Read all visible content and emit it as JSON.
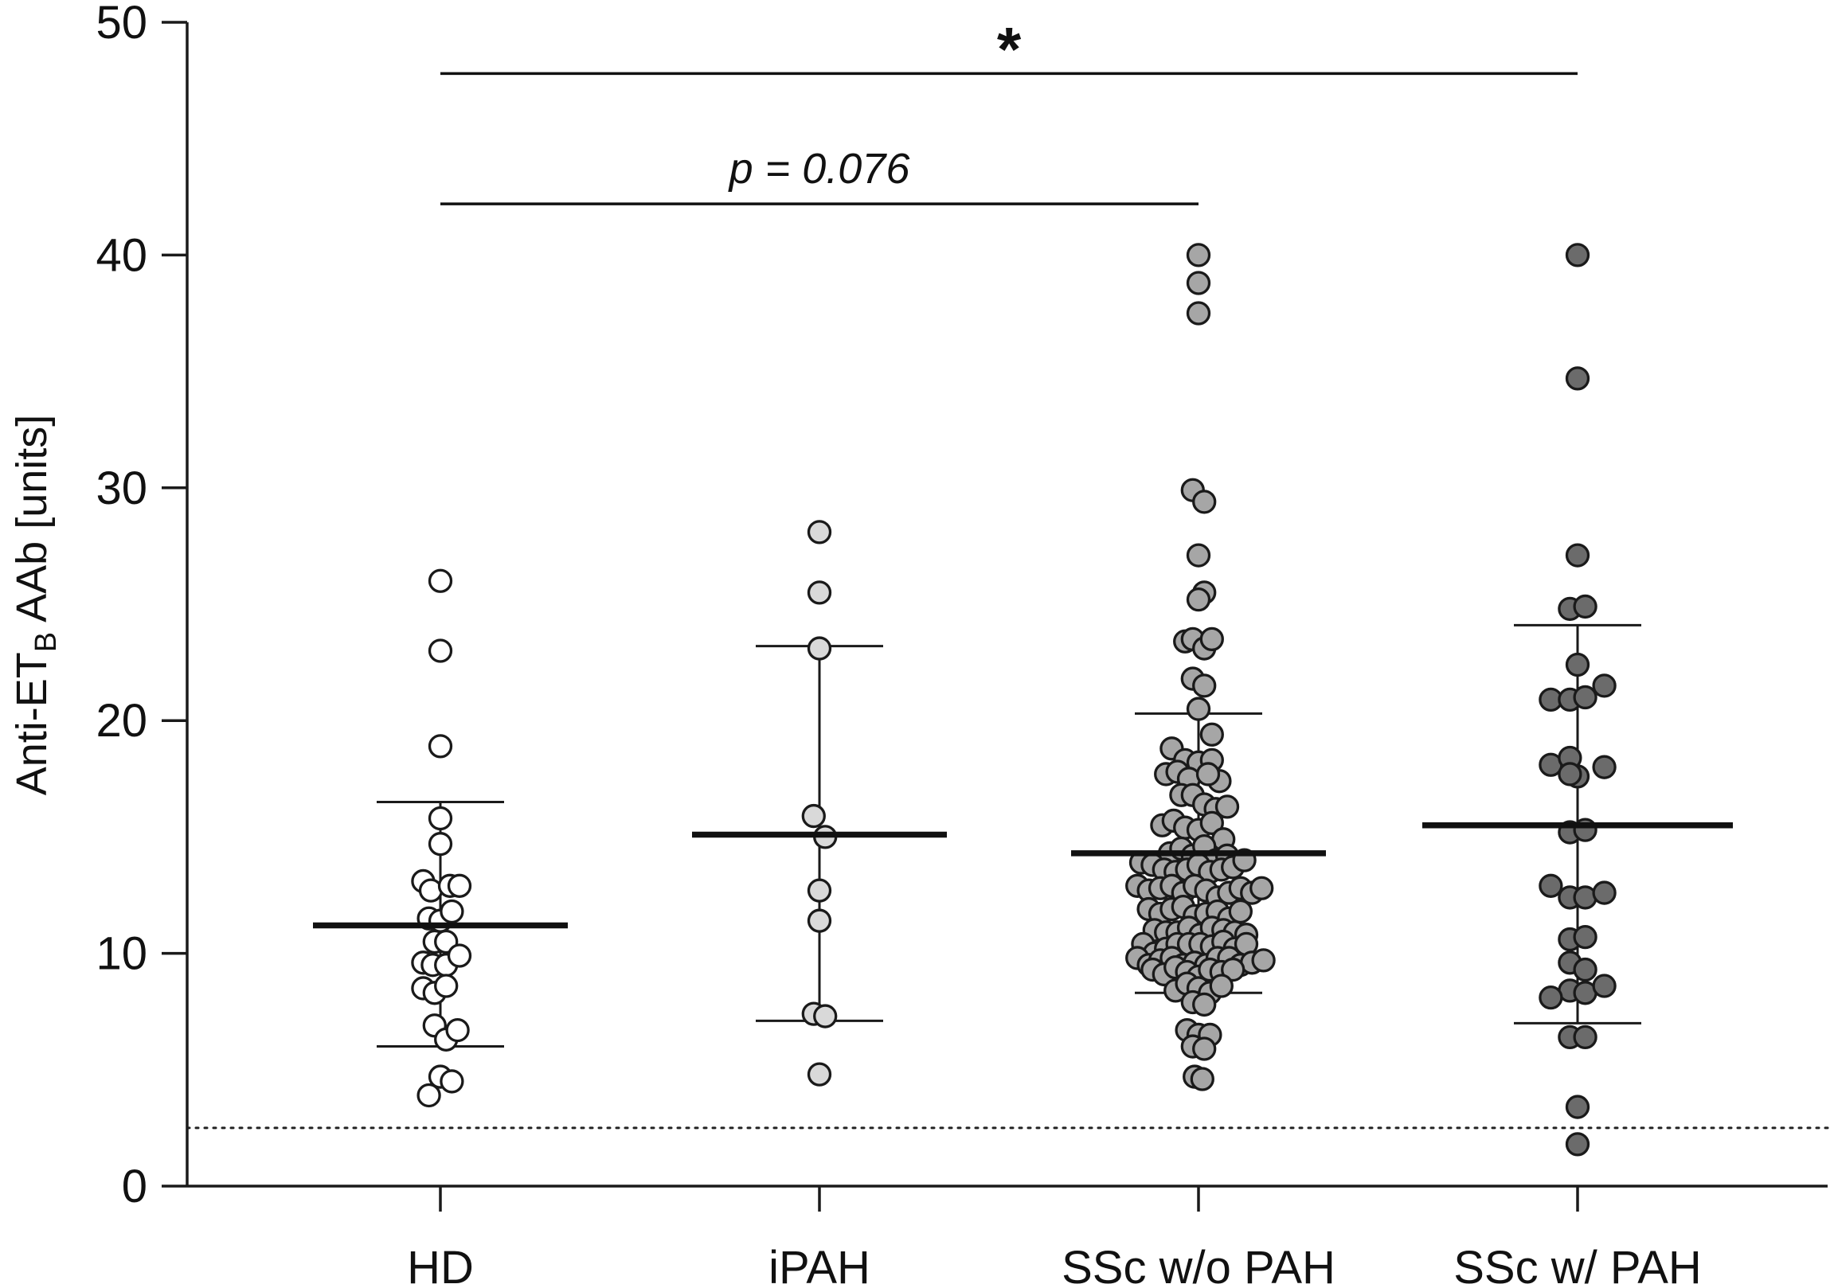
{
  "chart_data": {
    "type": "scatter",
    "subtype": "dot plot with mean and SD bars",
    "title": "",
    "ylabel": {
      "main": "Anti-ET",
      "subscript": "B",
      "rest": " AAb [units]"
    },
    "ylim": [
      0,
      50
    ],
    "yticks": [
      0,
      10,
      20,
      30,
      40,
      50
    ],
    "grid": false,
    "categories": [
      "HD",
      "iPAH",
      "SSc w/o PAH",
      "SSc w/ PAH"
    ],
    "cutoff": 2.5,
    "series": [
      {
        "category": "HD",
        "color": "#ffffff",
        "mean": 11.2,
        "sd_low": 6.0,
        "sd_high": 16.5,
        "points": [
          [
            0,
            26.0
          ],
          [
            0,
            23.0
          ],
          [
            0,
            18.9
          ],
          [
            0,
            15.8
          ],
          [
            0,
            14.7
          ],
          [
            -0.9,
            13.1
          ],
          [
            -0.5,
            12.7
          ],
          [
            0.5,
            12.9
          ],
          [
            1.0,
            12.9
          ],
          [
            -0.6,
            11.5
          ],
          [
            0,
            11.4
          ],
          [
            0.6,
            11.8
          ],
          [
            -0.3,
            10.5
          ],
          [
            0.3,
            10.5
          ],
          [
            -0.9,
            9.6
          ],
          [
            -0.4,
            9.5
          ],
          [
            0.3,
            9.5
          ],
          [
            1.0,
            9.9
          ],
          [
            -0.9,
            8.5
          ],
          [
            -0.3,
            8.3
          ],
          [
            0.3,
            8.6
          ],
          [
            -0.3,
            6.9
          ],
          [
            0.3,
            6.3
          ],
          [
            0.9,
            6.7
          ],
          [
            0,
            4.7
          ],
          [
            -0.6,
            3.9
          ],
          [
            0.6,
            4.5
          ]
        ]
      },
      {
        "category": "iPAH",
        "color": "#d9d9d9",
        "mean": 15.1,
        "sd_low": 7.1,
        "sd_high": 23.2,
        "points": [
          [
            0,
            28.1
          ],
          [
            0,
            25.5
          ],
          [
            0,
            23.1
          ],
          [
            -0.3,
            15.9
          ],
          [
            0.3,
            15.0
          ],
          [
            0,
            12.7
          ],
          [
            0,
            11.4
          ],
          [
            -0.3,
            7.4
          ],
          [
            0.3,
            7.3
          ],
          [
            0,
            4.8
          ]
        ]
      },
      {
        "category": "SSc w/o PAH",
        "color": "#a6a6a6",
        "mean": 14.3,
        "sd_low": 8.3,
        "sd_high": 20.3,
        "points": [
          [
            0,
            40.0
          ],
          [
            0,
            38.8
          ],
          [
            0,
            37.5
          ],
          [
            -0.3,
            29.9
          ],
          [
            0.3,
            29.4
          ],
          [
            0,
            27.1
          ],
          [
            0.3,
            25.5
          ],
          [
            0,
            25.2
          ],
          [
            -0.7,
            23.4
          ],
          [
            -0.3,
            23.5
          ],
          [
            0.3,
            23.1
          ],
          [
            0.7,
            23.5
          ],
          [
            -0.3,
            21.8
          ],
          [
            0.3,
            21.5
          ],
          [
            0,
            20.5
          ],
          [
            0.7,
            19.4
          ],
          [
            -1.4,
            18.8
          ],
          [
            -0.7,
            18.3
          ],
          [
            0,
            18.2
          ],
          [
            0.7,
            18.3
          ],
          [
            1.1,
            17.4
          ],
          [
            -1.7,
            17.7
          ],
          [
            -1.1,
            17.8
          ],
          [
            -0.5,
            17.5
          ],
          [
            0.5,
            17.7
          ],
          [
            -0.9,
            16.8
          ],
          [
            -0.3,
            16.8
          ],
          [
            0.3,
            16.4
          ],
          [
            0.9,
            16.2
          ],
          [
            1.5,
            16.3
          ],
          [
            -1.9,
            15.5
          ],
          [
            -1.3,
            15.7
          ],
          [
            -0.7,
            15.4
          ],
          [
            0,
            15.3
          ],
          [
            0.7,
            15.6
          ],
          [
            1.3,
            14.9
          ],
          [
            -1.5,
            14.3
          ],
          [
            -0.9,
            14.5
          ],
          [
            -0.3,
            14.2
          ],
          [
            0.3,
            14.6
          ],
          [
            0.9,
            14.0
          ],
          [
            1.5,
            14.2
          ],
          [
            -3.0,
            13.9
          ],
          [
            -2.4,
            13.8
          ],
          [
            -1.8,
            13.6
          ],
          [
            -1.2,
            13.5
          ],
          [
            -0.6,
            13.6
          ],
          [
            0,
            13.8
          ],
          [
            0.6,
            13.5
          ],
          [
            1.2,
            13.6
          ],
          [
            1.8,
            13.7
          ],
          [
            2.4,
            14.0
          ],
          [
            -3.2,
            12.9
          ],
          [
            -2.6,
            12.7
          ],
          [
            -2.0,
            12.8
          ],
          [
            -1.4,
            12.9
          ],
          [
            -0.8,
            12.6
          ],
          [
            -0.2,
            12.9
          ],
          [
            0.4,
            12.7
          ],
          [
            1.0,
            12.4
          ],
          [
            1.6,
            12.6
          ],
          [
            2.2,
            12.8
          ],
          [
            2.8,
            12.6
          ],
          [
            3.3,
            12.8
          ],
          [
            -2.6,
            11.9
          ],
          [
            -2.0,
            11.7
          ],
          [
            -1.4,
            11.9
          ],
          [
            -0.8,
            12.0
          ],
          [
            -0.2,
            11.6
          ],
          [
            0.4,
            11.7
          ],
          [
            1.0,
            11.8
          ],
          [
            1.6,
            11.5
          ],
          [
            2.2,
            11.8
          ],
          [
            -2.3,
            11.0
          ],
          [
            -1.7,
            10.9
          ],
          [
            -1.1,
            10.9
          ],
          [
            -0.5,
            11.1
          ],
          [
            0.1,
            10.8
          ],
          [
            0.7,
            11.1
          ],
          [
            1.3,
            11.0
          ],
          [
            1.9,
            10.9
          ],
          [
            2.5,
            10.8
          ],
          [
            -2.9,
            10.4
          ],
          [
            -2.3,
            10.0
          ],
          [
            -1.7,
            10.2
          ],
          [
            -1.1,
            10.4
          ],
          [
            -0.5,
            10.4
          ],
          [
            0.1,
            10.4
          ],
          [
            0.7,
            10.3
          ],
          [
            1.3,
            10.5
          ],
          [
            1.9,
            10.2
          ],
          [
            2.5,
            10.4
          ],
          [
            -3.2,
            9.8
          ],
          [
            -2.6,
            9.5
          ],
          [
            -2.0,
            9.7
          ],
          [
            -1.4,
            9.8
          ],
          [
            -0.8,
            9.5
          ],
          [
            -0.2,
            9.6
          ],
          [
            0.4,
            9.5
          ],
          [
            1.0,
            9.8
          ],
          [
            1.6,
            9.8
          ],
          [
            2.2,
            9.5
          ],
          [
            2.8,
            9.6
          ],
          [
            3.4,
            9.7
          ],
          [
            -2.4,
            9.3
          ],
          [
            -1.8,
            9.1
          ],
          [
            -1.2,
            9.4
          ],
          [
            -0.6,
            9.2
          ],
          [
            0,
            9.0
          ],
          [
            0.6,
            9.3
          ],
          [
            1.2,
            9.2
          ],
          [
            1.8,
            9.3
          ],
          [
            -1.2,
            8.4
          ],
          [
            -0.6,
            8.7
          ],
          [
            0,
            8.5
          ],
          [
            0.6,
            8.3
          ],
          [
            1.2,
            8.6
          ],
          [
            -0.3,
            7.9
          ],
          [
            0.3,
            7.8
          ],
          [
            -0.6,
            6.7
          ],
          [
            0,
            6.5
          ],
          [
            0.6,
            6.5
          ],
          [
            -0.3,
            6.0
          ],
          [
            0.3,
            5.9
          ],
          [
            -0.2,
            4.7
          ],
          [
            0.2,
            4.6
          ]
        ]
      },
      {
        "category": "SSc w/ PAH",
        "color": "#6b6b6b",
        "mean": 15.5,
        "sd_low": 7.0,
        "sd_high": 24.1,
        "points": [
          [
            0,
            40.0
          ],
          [
            0,
            34.7
          ],
          [
            0,
            27.1
          ],
          [
            -0.4,
            24.8
          ],
          [
            0.4,
            24.9
          ],
          [
            0,
            22.4
          ],
          [
            -1.4,
            20.9
          ],
          [
            -0.4,
            20.9
          ],
          [
            0.4,
            21.0
          ],
          [
            1.4,
            21.5
          ],
          [
            -1.4,
            18.1
          ],
          [
            -0.4,
            18.4
          ],
          [
            0,
            17.6
          ],
          [
            1.4,
            18.0
          ],
          [
            -0.4,
            17.7
          ],
          [
            -0.4,
            15.2
          ],
          [
            0.4,
            15.3
          ],
          [
            -1.4,
            12.9
          ],
          [
            -0.4,
            12.4
          ],
          [
            0.4,
            12.4
          ],
          [
            1.4,
            12.6
          ],
          [
            -0.4,
            10.6
          ],
          [
            0.4,
            10.7
          ],
          [
            -0.4,
            9.6
          ],
          [
            0.4,
            9.3
          ],
          [
            -0.4,
            8.4
          ],
          [
            0.4,
            8.3
          ],
          [
            -1.4,
            8.1
          ],
          [
            1.4,
            8.6
          ],
          [
            -0.4,
            6.4
          ],
          [
            0.4,
            6.4
          ],
          [
            0,
            3.4
          ],
          [
            0,
            1.8
          ]
        ]
      }
    ],
    "brackets": [
      {
        "from": "HD",
        "to": "SSc w/ PAH",
        "y": 47.8,
        "label": "*"
      },
      {
        "from": "HD",
        "to": "SSc w/o PAH",
        "y": 42.2,
        "label": "p = 0.076"
      }
    ]
  }
}
